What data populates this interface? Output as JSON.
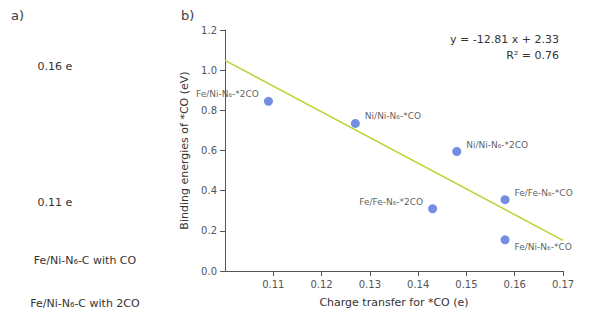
{
  "chart_data": [
    {
      "type": "text",
      "title": "a)",
      "annotations": [
        "0.16 e",
        "0.11 e",
        "Fe/Ni-N₆-C with CO",
        "Fe/Ni-N₆-C with 2CO"
      ]
    },
    {
      "type": "scatter",
      "title": "b)",
      "xlabel": "Charge transfer for *CO (e)",
      "ylabel": "Binding energies of *CO (eV)",
      "xlim": [
        0.1,
        0.17
      ],
      "xticks": [
        0.11,
        0.12,
        0.13,
        0.14,
        0.15,
        0.16,
        0.17
      ],
      "ylim": [
        0.0,
        1.2
      ],
      "yticks": [
        {
          "value": 0.0,
          "label": "0.0"
        },
        0.2,
        0.4,
        0.6,
        0.8,
        {
          "value": 1.0,
          "label": "1.0"
        },
        1.2
      ],
      "grid": false,
      "series": [
        {
          "type": "scatter",
          "x": [
            0.109,
            0.127,
            0.148,
            0.143,
            0.158,
            0.158
          ],
          "values": [
            0.845,
            0.735,
            0.595,
            0.31,
            0.355,
            0.155
          ],
          "labels": [
            "Fe/Ni-N₆-*2CO",
            "Ni/Ni-N₆-*CO",
            "Ni/Ni-N₆-*2CO",
            "Fe/Fe-N₆-*2CO",
            "Fe/Fe-N₆-*CO",
            "Fe/Ni-N₆-*CO"
          ]
        },
        {
          "type": "line",
          "x": [
            0.1,
            0.17
          ],
          "values": [
            1.049,
            0.1523
          ]
        }
      ],
      "annotations": [
        "y = -12.81 x + 2.33",
        "R² = 0.76"
      ]
    }
  ]
}
